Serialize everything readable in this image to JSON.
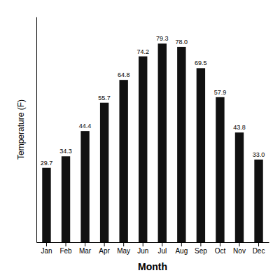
{
  "chart_data": {
    "type": "bar",
    "xlabel": "Month",
    "ylabel": "Temperature (F)",
    "categories": [
      "Jan",
      "Feb",
      "Mar",
      "Apr",
      "May",
      "Jun",
      "Jul",
      "Aug",
      "Sep",
      "Oct",
      "Nov",
      "Dec"
    ],
    "values": [
      29.7,
      34.3,
      44.4,
      55.7,
      64.8,
      74.2,
      79.3,
      78.0,
      69.5,
      57.9,
      43.8,
      33.0
    ],
    "value_labels": [
      "29.7",
      "34.3",
      "44.4",
      "55.7",
      "64.8",
      "74.2",
      "79.3",
      "78.0",
      "69.5",
      "57.9",
      "43.8",
      "33.0"
    ],
    "color": "#111111",
    "ylim": [
      0,
      90
    ],
    "data_labels": true,
    "tick_labels": "x",
    "grid": false
  }
}
